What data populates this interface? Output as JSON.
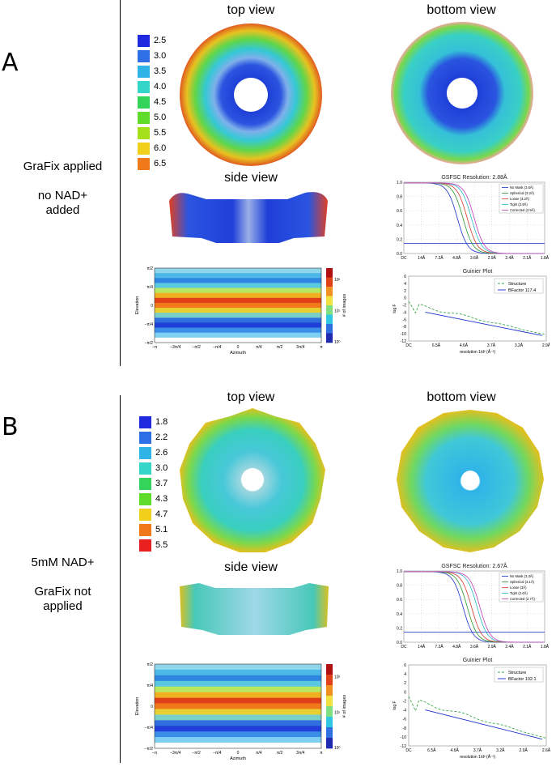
{
  "panels": [
    {
      "letter": "A",
      "condition": [
        "GraFix applied",
        "no NAD+",
        "added"
      ],
      "top_view": "top view",
      "bottom_view": "bottom view",
      "side_view": "side view",
      "colorbar": {
        "labels": [
          "2.5",
          "3.0",
          "3.5",
          "4.0",
          "4.5",
          "5.0",
          "5.5",
          "6.0",
          "6.5"
        ],
        "colors": [
          "#1f2ae0",
          "#2f6fe6",
          "#2fb4e8",
          "#33d6c8",
          "#34d45a",
          "#5fdc2a",
          "#a5e01a",
          "#f0d01a",
          "#f07a1a"
        ]
      },
      "fsc": {
        "title": "GSFSC Resolution: 2.88Å",
        "xticks": [
          "DC",
          "14Å",
          "7.2Å",
          "4.8Å",
          "3.6Å",
          "2.9Å",
          "2.4Å",
          "2.1Å",
          "1.8Å"
        ],
        "yticks": [
          "1.0",
          "0.8",
          "0.6",
          "0.4",
          "0.2",
          "0.0"
        ],
        "legend": [
          "No Mask (3.5Å)",
          "Spherical (3.3Å)",
          "Loose (3.2Å)",
          "Tight (2.9Å)",
          "Corrected (2.9Å)"
        ]
      },
      "guinier": {
        "title": "Guinier Plot",
        "ylabel": "log F",
        "xlabel": "resolution 1/d² (Å⁻²)",
        "xticks": [
          "DC",
          "6.5Å",
          "4.6Å",
          "3.7Å",
          "3.2Å",
          "2.9Å"
        ],
        "yticks": [
          "6",
          "4",
          "2",
          "0",
          "-2",
          "-4",
          "-6",
          "-8",
          "-10",
          "-12"
        ],
        "legend": [
          "Structure",
          "BFactor 117.4"
        ]
      },
      "angular": {
        "ylabel": "Elevation",
        "xlabel": "Azimuth",
        "cblabel": "# of images",
        "cbticks": [
          "10²",
          "10¹",
          "10⁰"
        ],
        "yticks": [
          "π/2",
          "π/4",
          "0",
          "−π/4",
          "−π/2"
        ],
        "xticks": [
          "−π",
          "−3π/4",
          "−π/2",
          "−π/4",
          "0",
          "π/4",
          "π/2",
          "3π/4",
          "π"
        ]
      }
    },
    {
      "letter": "B",
      "condition": [
        "5mM NAD+",
        "GraFix not",
        "applied"
      ],
      "top_view": "top view",
      "bottom_view": "bottom view",
      "side_view": "side view",
      "colorbar": {
        "labels": [
          "1.8",
          "2.2",
          "2.6",
          "3.0",
          "3.7",
          "4.3",
          "4.7",
          "5.1",
          "5.5"
        ],
        "colors": [
          "#1f2ae0",
          "#2f6fe6",
          "#2fb4e8",
          "#33d6c8",
          "#34d45a",
          "#5fdc2a",
          "#f0d01a",
          "#f07a1a",
          "#e82020"
        ]
      },
      "fsc": {
        "title": "GSFSC Resolution: 2.67Å",
        "xticks": [
          "DC",
          "14Å",
          "7.2Å",
          "4.8Å",
          "3.6Å",
          "2.9Å",
          "2.4Å",
          "2.1Å",
          "1.8Å"
        ],
        "yticks": [
          "1.0",
          "0.8",
          "0.6",
          "0.4",
          "0.2",
          "0.0"
        ],
        "legend": [
          "No Mask (3.3Å)",
          "Spherical (3.1Å)",
          "Loose (3Å)",
          "Tight (2.6Å)",
          "Corrected (2.7Å)"
        ]
      },
      "guinier": {
        "title": "Guinier Plot",
        "ylabel": "log F",
        "xlabel": "resolution 1/d² (Å⁻²)",
        "xticks": [
          "DC",
          "6.5Å",
          "4.6Å",
          "3.7Å",
          "3.2Å",
          "2.9Å",
          "2.6Å"
        ],
        "yticks": [
          "6",
          "4",
          "2",
          "0",
          "-2",
          "-4",
          "-6",
          "-8",
          "-10",
          "-12"
        ],
        "legend": [
          "Structure",
          "BFactor 102.1"
        ]
      },
      "angular": {
        "ylabel": "Elevation",
        "xlabel": "Azimuth",
        "cblabel": "# of images",
        "cbticks": [
          "10²",
          "10¹",
          "10⁰"
        ],
        "yticks": [
          "π/2",
          "π/4",
          "0",
          "−π/4",
          "−π/2"
        ],
        "xticks": [
          "−π",
          "−3π/4",
          "−π/2",
          "−π/4",
          "0",
          "π/4",
          "π/2",
          "3π/4",
          "π"
        ]
      }
    }
  ],
  "colors": {
    "no_mask": "#1a2fcf",
    "spherical": "#2a9a2a",
    "loose": "#d23a2a",
    "tight": "#26b8c8",
    "corrected": "#c43ab8",
    "threshold": "#2a4bd0",
    "structure": "#3aa84a",
    "bfactor": "#1a2fcf"
  }
}
